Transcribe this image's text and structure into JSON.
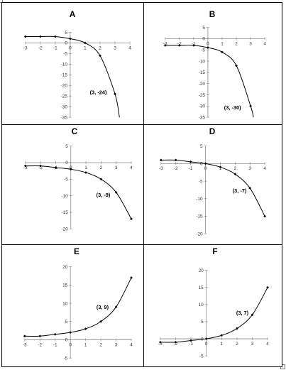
{
  "chart_data": [
    {
      "title": "A",
      "type": "line",
      "x": [
        -3,
        -2,
        -1,
        0,
        1,
        2,
        3,
        3.3
      ],
      "y": [
        3,
        3,
        3,
        2,
        0,
        -6,
        -24,
        -35
      ],
      "xlim": [
        -3,
        4
      ],
      "ylim": [
        -35,
        5
      ],
      "xticks": [
        -3,
        -2,
        -1,
        0,
        1,
        2,
        3,
        4
      ],
      "yticks": [
        5,
        0,
        -5,
        -10,
        -15,
        -20,
        -25,
        -30,
        -35
      ],
      "xtick_labels": [
        "-3",
        "-2",
        "-1",
        "0",
        "1",
        "2",
        "3",
        "4"
      ],
      "ytick_labels": [
        "5",
        "0",
        "-5",
        "-10",
        "-15",
        "-20",
        "-25",
        "-30",
        "-35"
      ],
      "markers": [
        [
          -3,
          3
        ],
        [
          -2,
          3
        ],
        [
          -1,
          3
        ],
        [
          0,
          2
        ],
        [
          1,
          0
        ],
        [
          2,
          -6
        ],
        [
          3,
          -24
        ]
      ],
      "annotation": "(3, -24)",
      "grid": false
    },
    {
      "title": "B",
      "type": "line",
      "x": [
        -3,
        -2,
        -1,
        0,
        1,
        2,
        3,
        3.2
      ],
      "y": [
        -3,
        -3,
        -3,
        -4,
        -6,
        -12,
        -30,
        -35
      ],
      "xlim": [
        -3,
        4
      ],
      "ylim": [
        -35,
        5
      ],
      "xticks": [
        -3,
        -2,
        -1,
        0,
        1,
        2,
        3,
        4
      ],
      "yticks": [
        5,
        0,
        -5,
        -10,
        -15,
        -20,
        -25,
        -30,
        -35
      ],
      "xtick_labels": [
        "-3",
        "-2",
        "-1",
        "0",
        "1",
        "2",
        "3",
        "4"
      ],
      "ytick_labels": [
        "5",
        "0",
        "-5",
        "-10",
        "-15",
        "-20",
        "-25",
        "-30",
        "-35"
      ],
      "markers": [
        [
          -3,
          -3
        ],
        [
          -2,
          -3
        ],
        [
          -1,
          -3
        ],
        [
          0,
          -4
        ],
        [
          1,
          -6
        ],
        [
          2,
          -12
        ],
        [
          3,
          -30
        ]
      ],
      "annotation": "(3, -30)",
      "grid": false
    },
    {
      "title": "C",
      "type": "line",
      "x": [
        -3,
        -2,
        -1,
        0,
        1,
        2,
        3,
        4
      ],
      "y": [
        -1,
        -1,
        -1.5,
        -2,
        -3,
        -5,
        -9,
        -17
      ],
      "xlim": [
        -3,
        4
      ],
      "ylim": [
        -20,
        5
      ],
      "xticks": [
        -3,
        -2,
        -1,
        0,
        1,
        2,
        3,
        4
      ],
      "yticks": [
        5,
        0,
        -5,
        -10,
        -15,
        -20
      ],
      "xtick_labels": [
        "-3",
        "-2",
        "-1",
        "0",
        "1",
        "2",
        "3",
        "4"
      ],
      "ytick_labels": [
        "5",
        "0",
        "-5",
        "-10",
        "-15",
        "-20"
      ],
      "markers": [
        [
          -3,
          -1
        ],
        [
          -2,
          -1
        ],
        [
          -1,
          -1.5
        ],
        [
          0,
          -2
        ],
        [
          1,
          -3
        ],
        [
          2,
          -5
        ],
        [
          3,
          -9
        ],
        [
          4,
          -17
        ]
      ],
      "annotation": "(3, -9)",
      "grid": false
    },
    {
      "title": "D",
      "type": "line",
      "x": [
        -3,
        -2,
        -1,
        0,
        1,
        2,
        3,
        4
      ],
      "y": [
        1,
        1,
        0.5,
        0,
        -1,
        -3,
        -7,
        -15
      ],
      "xlim": [
        -3,
        4
      ],
      "ylim": [
        -20,
        5
      ],
      "xticks": [
        -3,
        -2,
        -1,
        0,
        1,
        2,
        3,
        4
      ],
      "yticks": [
        5,
        0,
        -5,
        -10,
        -15,
        -20
      ],
      "xtick_labels": [
        "-3",
        "-2",
        "-1",
        "0",
        "1",
        "2",
        "3",
        "4"
      ],
      "ytick_labels": [
        "5",
        "0",
        "-5",
        "-10",
        "-15",
        "-20"
      ],
      "markers": [
        [
          -3,
          1
        ],
        [
          -2,
          1
        ],
        [
          -1,
          0.5
        ],
        [
          0,
          0
        ],
        [
          1,
          -1
        ],
        [
          2,
          -3
        ],
        [
          3,
          -7
        ],
        [
          4,
          -15
        ]
      ],
      "annotation": "(3, -7)",
      "grid": false
    },
    {
      "title": "E",
      "type": "line",
      "x": [
        -3,
        -2,
        -1,
        0,
        1,
        2,
        3,
        4
      ],
      "y": [
        1,
        1,
        1.5,
        2,
        3,
        5,
        9,
        17
      ],
      "xlim": [
        -3,
        4
      ],
      "ylim": [
        -5,
        20
      ],
      "xticks": [
        -3,
        -2,
        -1,
        0,
        1,
        2,
        3,
        4
      ],
      "yticks": [
        20,
        15,
        10,
        5,
        0,
        -5
      ],
      "xtick_labels": [
        "-3",
        "-2",
        "-1",
        "0",
        "1",
        "2",
        "3",
        "4"
      ],
      "ytick_labels": [
        "20",
        "15",
        "10",
        "5",
        "0",
        "-5"
      ],
      "markers": [
        [
          -3,
          1
        ],
        [
          -2,
          1
        ],
        [
          -1,
          1.5
        ],
        [
          0,
          2
        ],
        [
          1,
          3
        ],
        [
          2,
          5
        ],
        [
          3,
          9
        ],
        [
          4,
          17
        ]
      ],
      "annotation": "(3, 9)",
      "grid": false
    },
    {
      "title": "F",
      "type": "line",
      "x": [
        -3,
        -2,
        -1,
        0,
        1,
        2,
        3,
        4
      ],
      "y": [
        -1,
        -1,
        -0.5,
        0,
        1,
        3,
        7,
        15
      ],
      "xlim": [
        -3,
        4
      ],
      "ylim": [
        -5,
        20
      ],
      "xticks": [
        -3,
        -2,
        -1,
        0,
        1,
        2,
        3,
        4
      ],
      "yticks": [
        20,
        15,
        10,
        5,
        0,
        -5
      ],
      "xtick_labels": [
        "-3",
        "-2",
        "-1",
        "0",
        "1",
        "2",
        "3",
        "4"
      ],
      "ytick_labels": [
        "20",
        "15",
        "10",
        "5",
        "0",
        "-5"
      ],
      "markers": [
        [
          -3,
          -1
        ],
        [
          -2,
          -1
        ],
        [
          -1,
          -0.5
        ],
        [
          0,
          0
        ],
        [
          1,
          1
        ],
        [
          2,
          3
        ],
        [
          3,
          7
        ],
        [
          4,
          15
        ]
      ],
      "annotation": "(3, 7)",
      "grid": false
    }
  ]
}
